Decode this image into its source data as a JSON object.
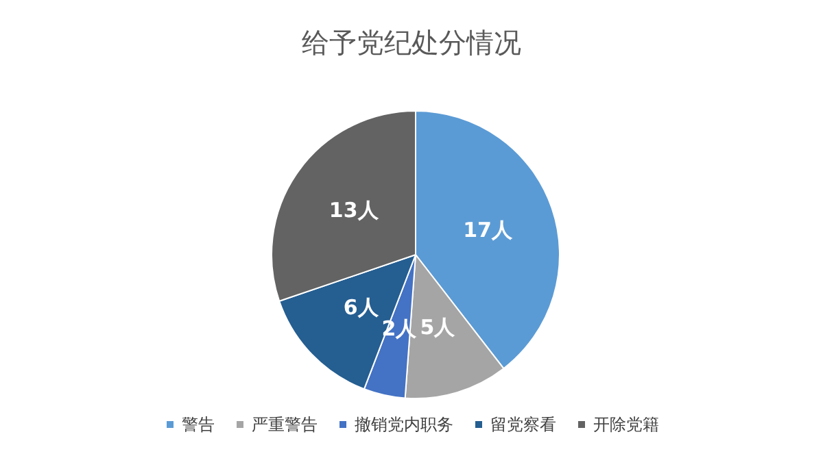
{
  "chart_data": {
    "type": "pie",
    "title": "给予党纪处分情况",
    "categories": [
      "警告",
      "严重警告",
      "撤销党内职务",
      "留党察看",
      "开除党籍"
    ],
    "values": [
      17,
      5,
      2,
      6,
      13
    ],
    "value_labels": [
      "17人",
      "5人",
      "2人",
      "6人",
      "13人"
    ],
    "colors": [
      "#5b9bd5",
      "#a5a5a5",
      "#4472c4",
      "#255e91",
      "#636363"
    ],
    "legend": "bottom"
  }
}
